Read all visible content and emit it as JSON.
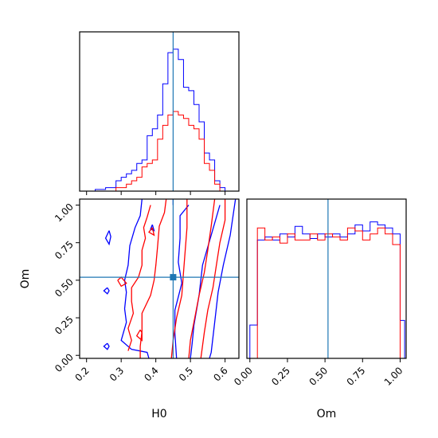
{
  "chart_data": [
    {
      "panel": "H0 marginal",
      "type": "histogram",
      "truth": 0.45,
      "x_tick_labels": [
        "0.2",
        "0.3",
        "0.4",
        "0.5",
        "0.6"
      ],
      "xlim": [
        0.18,
        0.64
      ],
      "bin_edges": [
        0.225,
        0.24,
        0.255,
        0.27,
        0.285,
        0.3,
        0.315,
        0.33,
        0.345,
        0.36,
        0.375,
        0.39,
        0.405,
        0.42,
        0.435,
        0.45,
        0.465,
        0.48,
        0.495,
        0.51,
        0.525,
        0.54,
        0.555,
        0.57,
        0.585,
        0.6,
        0.615
      ],
      "series": [
        {
          "color": "#0000ff",
          "values": [
            1,
            1,
            2,
            2,
            6,
            8,
            10,
            12,
            16,
            18,
            32,
            36,
            44,
            62,
            80,
            82,
            76,
            60,
            58,
            50,
            40,
            22,
            18,
            6,
            2,
            0
          ]
        },
        {
          "color": "#ff0000",
          "values": [
            0,
            0,
            0,
            0,
            2,
            2,
            4,
            6,
            8,
            14,
            16,
            18,
            30,
            38,
            44,
            46,
            44,
            42,
            38,
            36,
            30,
            16,
            12,
            4,
            0,
            0
          ]
        }
      ]
    },
    {
      "panel": "H0 vs Om",
      "type": "contour",
      "xlabel": "H0",
      "ylabel": "Om",
      "truth": {
        "x": 0.45,
        "y": 0.52
      },
      "xlim": [
        0.18,
        0.64
      ],
      "ylim": [
        -0.02,
        1.04
      ],
      "x_tick_labels": [
        "0.2",
        "0.3",
        "0.4",
        "0.5",
        "0.6"
      ],
      "y_tick_labels": [
        "0.00",
        "0.25",
        "0.50",
        "0.75",
        "1.00"
      ],
      "series": [
        {
          "color": "#0000ff",
          "contours": [
            [
              [
                0.36,
                1.04
              ],
              [
                0.355,
                0.93
              ],
              [
                0.34,
                0.85
              ],
              [
                0.325,
                0.73
              ],
              [
                0.32,
                0.6
              ],
              [
                0.31,
                0.5
              ],
              [
                0.315,
                0.42
              ],
              [
                0.31,
                0.31
              ],
              [
                0.315,
                0.22
              ],
              [
                0.3,
                0.1
              ],
              [
                0.33,
                0.04
              ],
              [
                0.375,
                0.02
              ],
              [
                0.38,
                -0.02
              ]
            ],
            [
              [
                0.45,
                1.04
              ],
              [
                0.45,
                1.0
              ]
            ],
            [
              [
                0.495,
                1.0
              ],
              [
                0.47,
                0.93
              ],
              [
                0.47,
                0.78
              ],
              [
                0.465,
                0.62
              ],
              [
                0.475,
                0.48
              ],
              [
                0.455,
                0.3
              ],
              [
                0.455,
                0.15
              ],
              [
                0.46,
                -0.02
              ]
            ],
            [
              [
                0.585,
                1.0
              ],
              [
                0.56,
                0.8
              ],
              [
                0.535,
                0.6
              ],
              [
                0.525,
                0.4
              ],
              [
                0.51,
                0.2
              ],
              [
                0.505,
                0.08
              ],
              [
                0.5,
                -0.02
              ]
            ],
            [
              [
                0.63,
                1.04
              ],
              [
                0.615,
                0.8
              ],
              [
                0.595,
                0.6
              ],
              [
                0.58,
                0.42
              ],
              [
                0.57,
                0.22
              ],
              [
                0.56,
                0.02
              ],
              [
                0.555,
                -0.02
              ]
            ],
            [
              [
                0.265,
                0.83
              ],
              [
                0.255,
                0.78
              ],
              [
                0.265,
                0.74
              ],
              [
                0.27,
                0.79
              ],
              [
                0.265,
                0.83
              ]
            ],
            [
              [
                0.39,
                0.87
              ],
              [
                0.385,
                0.84
              ],
              [
                0.395,
                0.83
              ],
              [
                0.39,
                0.87
              ]
            ],
            [
              [
                0.26,
                0.45
              ],
              [
                0.25,
                0.43
              ],
              [
                0.26,
                0.41
              ],
              [
                0.265,
                0.43
              ],
              [
                0.26,
                0.45
              ]
            ],
            [
              [
                0.26,
                0.08
              ],
              [
                0.25,
                0.06
              ],
              [
                0.26,
                0.04
              ],
              [
                0.265,
                0.06
              ],
              [
                0.26,
                0.08
              ]
            ]
          ]
        },
        {
          "color": "#ff0000",
          "contours": [
            [
              [
                0.43,
                1.04
              ],
              [
                0.425,
                0.95
              ],
              [
                0.41,
                0.86
              ],
              [
                0.405,
                0.72
              ],
              [
                0.4,
                0.6
              ],
              [
                0.395,
                0.5
              ],
              [
                0.385,
                0.4
              ],
              [
                0.36,
                0.28
              ],
              [
                0.36,
                0.16
              ],
              [
                0.355,
                0.06
              ],
              [
                0.355,
                -0.02
              ]
            ],
            [
              [
                0.385,
                1.0
              ],
              [
                0.375,
                0.92
              ],
              [
                0.365,
                0.85
              ],
              [
                0.37,
                0.78
              ],
              [
                0.36,
                0.7
              ],
              [
                0.36,
                0.6
              ],
              [
                0.35,
                0.52
              ],
              [
                0.33,
                0.45
              ],
              [
                0.33,
                0.36
              ],
              [
                0.335,
                0.28
              ],
              [
                0.32,
                0.18
              ],
              [
                0.33,
                0.1
              ],
              [
                0.32,
                0.03
              ]
            ],
            [
              [
                0.49,
                1.04
              ],
              [
                0.49,
                0.85
              ],
              [
                0.485,
                0.7
              ],
              [
                0.48,
                0.55
              ],
              [
                0.475,
                0.4
              ],
              [
                0.46,
                0.25
              ],
              [
                0.45,
                0.1
              ],
              [
                0.445,
                -0.02
              ]
            ],
            [
              [
                0.57,
                1.04
              ],
              [
                0.56,
                0.86
              ],
              [
                0.55,
                0.7
              ],
              [
                0.54,
                0.55
              ],
              [
                0.525,
                0.4
              ],
              [
                0.51,
                0.22
              ],
              [
                0.5,
                0.1
              ],
              [
                0.495,
                -0.02
              ]
            ],
            [
              [
                0.6,
                1.04
              ],
              [
                0.6,
                0.9
              ],
              [
                0.585,
                0.75
              ],
              [
                0.575,
                0.6
              ],
              [
                0.565,
                0.45
              ],
              [
                0.55,
                0.3
              ],
              [
                0.54,
                0.15
              ],
              [
                0.53,
                -0.02
              ]
            ],
            [
              [
                0.29,
                0.5
              ],
              [
                0.3,
                0.46
              ],
              [
                0.315,
                0.48
              ],
              [
                0.3,
                0.52
              ],
              [
                0.29,
                0.5
              ]
            ],
            [
              [
                0.355,
                0.17
              ],
              [
                0.345,
                0.13
              ],
              [
                0.36,
                0.1
              ],
              [
                0.36,
                0.15
              ],
              [
                0.355,
                0.17
              ]
            ],
            [
              [
                0.39,
                0.85
              ],
              [
                0.38,
                0.82
              ],
              [
                0.395,
                0.8
              ],
              [
                0.39,
                0.85
              ]
            ]
          ]
        }
      ]
    },
    {
      "panel": "Om marginal",
      "type": "histogram",
      "xlabel": "Om",
      "truth": 0.52,
      "x_tick_labels": [
        "0.00",
        "0.25",
        "0.50",
        "0.75",
        "1.00"
      ],
      "xlim": [
        -0.02,
        1.04
      ],
      "bin_edges": [
        0.0,
        0.05,
        0.1,
        0.15,
        0.2,
        0.25,
        0.3,
        0.35,
        0.4,
        0.45,
        0.5,
        0.55,
        0.6,
        0.65,
        0.7,
        0.75,
        0.8,
        0.85,
        0.9,
        0.95,
        1.0,
        1.03
      ],
      "series": [
        {
          "color": "#0000ff",
          "values": [
            22,
            78,
            80,
            78,
            82,
            80,
            87,
            82,
            79,
            82,
            80,
            82,
            80,
            82,
            88,
            84,
            90,
            88,
            86,
            82,
            25
          ]
        },
        {
          "color": "#ff0000",
          "values": [
            0,
            86,
            78,
            80,
            76,
            82,
            78,
            78,
            82,
            78,
            82,
            80,
            78,
            86,
            84,
            78,
            82,
            86,
            82,
            75,
            0
          ]
        }
      ]
    }
  ]
}
